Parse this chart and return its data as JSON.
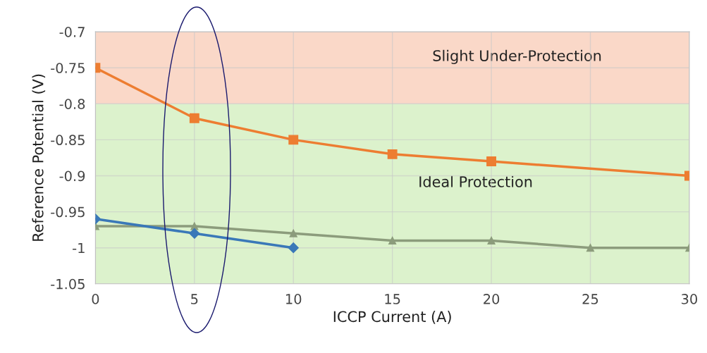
{
  "chart_data": {
    "type": "line",
    "xlabel": "ICCP Current (A)",
    "ylabel": "Reference Potential (V)",
    "xlim": [
      0,
      30
    ],
    "xticks": [
      0,
      5,
      10,
      15,
      20,
      25,
      30
    ],
    "ylim": [
      -1.05,
      -0.7
    ],
    "yticks": [
      -1.05,
      -1,
      -0.95,
      -0.9,
      -0.85,
      -0.8,
      -0.75,
      -0.7
    ],
    "grid": true,
    "series": [
      {
        "color": "#ed7d31",
        "marker": "square",
        "x": [
          0,
          5,
          10,
          15,
          20,
          30
        ],
        "values": [
          -0.75,
          -0.82,
          -0.85,
          -0.87,
          -0.88,
          -0.9
        ]
      },
      {
        "color": "#8c9c7c",
        "marker": "triangle",
        "x": [
          0,
          5,
          10,
          15,
          20,
          25,
          30
        ],
        "values": [
          -0.97,
          -0.97,
          -0.98,
          -0.99,
          -0.99,
          -1.0,
          -1.0
        ]
      },
      {
        "color": "#3a78b8",
        "marker": "diamond",
        "x": [
          0,
          5,
          10
        ],
        "values": [
          -0.96,
          -0.98,
          -1.0
        ]
      }
    ],
    "bands": [
      {
        "axis": "y",
        "from": -0.8,
        "to": -0.7,
        "label": "Slight Under-Protection",
        "color": "#fad8c8"
      },
      {
        "axis": "y",
        "from": -1.05,
        "to": -0.8,
        "label": "Ideal Protection",
        "color": "#dcf2cc"
      }
    ]
  }
}
